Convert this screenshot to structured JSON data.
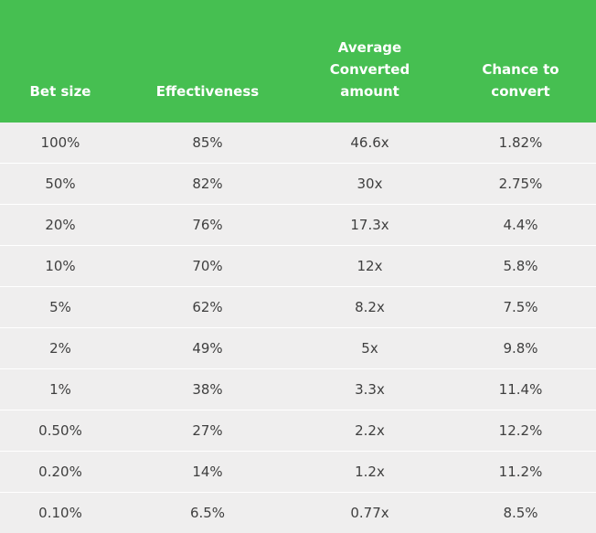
{
  "headers": [
    "Bet size",
    "Effectiveness",
    "Average Converted amount",
    "Chance to convert"
  ],
  "colors": {
    "header_bg": "#46bf51",
    "header_text": "#ffffff",
    "row_bg": "#efeeee",
    "row_text": "#3f3f3f"
  },
  "rows": [
    [
      "100%",
      "85%",
      "46.6x",
      "1.82%"
    ],
    [
      "50%",
      "82%",
      "30x",
      "2.75%"
    ],
    [
      "20%",
      "76%",
      "17.3x",
      "4.4%"
    ],
    [
      "10%",
      "70%",
      "12x",
      "5.8%"
    ],
    [
      "5%",
      "62%",
      "8.2x",
      "7.5%"
    ],
    [
      "2%",
      "49%",
      "5x",
      "9.8%"
    ],
    [
      "1%",
      "38%",
      "3.3x",
      "11.4%"
    ],
    [
      "0.50%",
      "27%",
      "2.2x",
      "12.2%"
    ],
    [
      "0.20%",
      "14%",
      "1.2x",
      "11.2%"
    ],
    [
      "0.10%",
      "6.5%",
      "0.77x",
      "8.5%"
    ]
  ]
}
